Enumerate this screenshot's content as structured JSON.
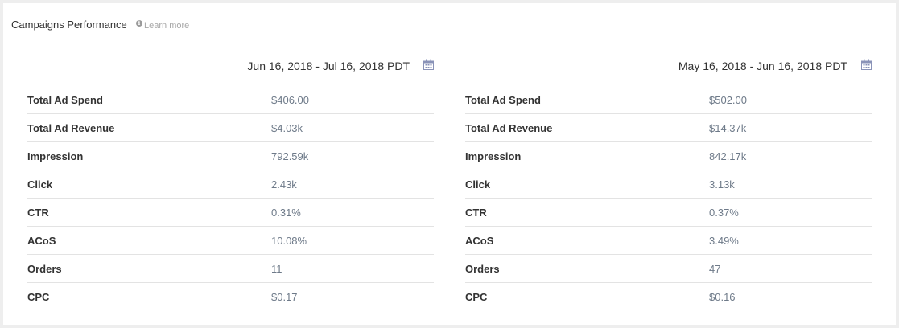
{
  "header": {
    "title": "Campaigns Performance",
    "info_icon": "info-circle-icon",
    "learn_more": "Learn more"
  },
  "panels": [
    {
      "date_range": "Jun 16, 2018 - Jul 16, 2018 PDT",
      "calendar_icon": "calendar-icon",
      "rows": [
        {
          "label": "Total Ad Spend",
          "value": "$406.00"
        },
        {
          "label": "Total Ad Revenue",
          "value": "$4.03k"
        },
        {
          "label": "Impression",
          "value": "792.59k"
        },
        {
          "label": "Click",
          "value": "2.43k"
        },
        {
          "label": "CTR",
          "value": "0.31%"
        },
        {
          "label": "ACoS",
          "value": "10.08%"
        },
        {
          "label": "Orders",
          "value": "11"
        },
        {
          "label": "CPC",
          "value": "$0.17"
        }
      ]
    },
    {
      "date_range": "May 16, 2018 - Jun 16, 2018 PDT",
      "calendar_icon": "calendar-icon",
      "rows": [
        {
          "label": "Total Ad Spend",
          "value": "$502.00"
        },
        {
          "label": "Total Ad Revenue",
          "value": "$14.37k"
        },
        {
          "label": "Impression",
          "value": "842.17k"
        },
        {
          "label": "Click",
          "value": "3.13k"
        },
        {
          "label": "CTR",
          "value": "0.37%"
        },
        {
          "label": "ACoS",
          "value": "3.49%"
        },
        {
          "label": "Orders",
          "value": "47"
        },
        {
          "label": "CPC",
          "value": "$0.16"
        }
      ]
    }
  ],
  "colors": {
    "value_text": "#6e7a89",
    "label_text": "#333333",
    "calendar_icon": "#8a93b8",
    "divider": "#e3e3e3"
  }
}
